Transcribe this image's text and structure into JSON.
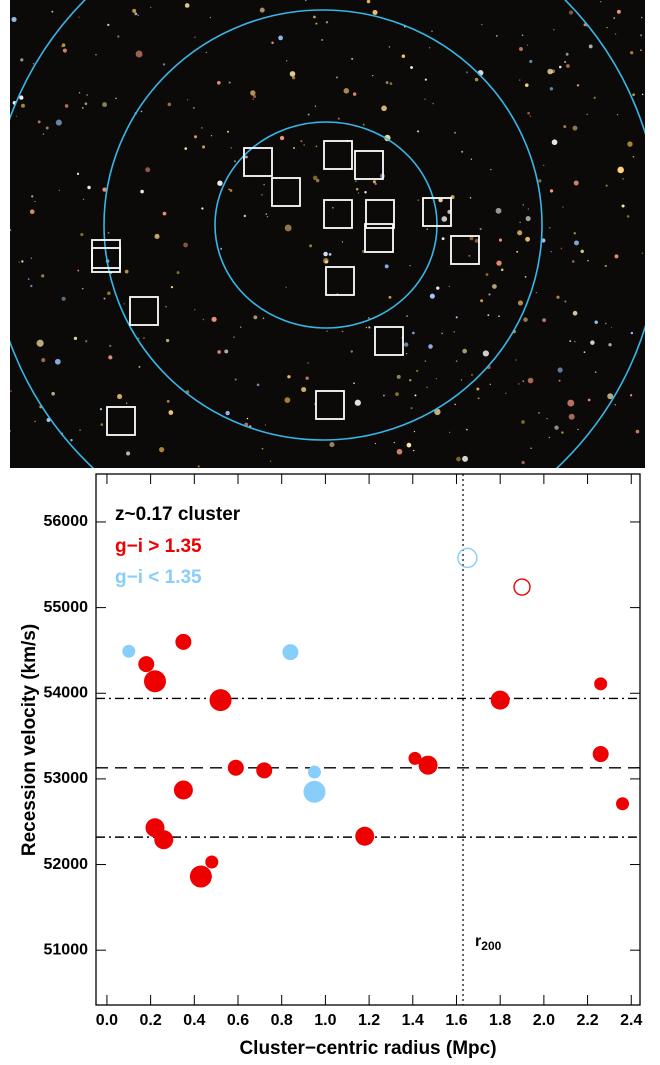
{
  "chart_data": {
    "type": "scatter",
    "legend_title": "z~0.17 cluster",
    "xlabel": "Cluster−centric radius (Mpc)",
    "ylabel": "Recession velocity (km/s)",
    "xlim": [
      -0.05,
      2.44
    ],
    "ylim": [
      50360,
      56560
    ],
    "xticks": [
      {
        "value": 0,
        "label": "0.0"
      },
      {
        "value": 0.2,
        "label": "0.2"
      },
      {
        "value": 0.4,
        "label": "0.4"
      },
      {
        "value": 0.6,
        "label": "0.6"
      },
      {
        "value": 0.8,
        "label": "0.8"
      },
      {
        "value": 1,
        "label": "1.0"
      },
      {
        "value": 1.2,
        "label": "1.2"
      },
      {
        "value": 1.4,
        "label": "1.4"
      },
      {
        "value": 1.6,
        "label": "1.6"
      },
      {
        "value": 1.8,
        "label": "1.8"
      },
      {
        "value": 2,
        "label": "2.0"
      },
      {
        "value": 2.2,
        "label": "2.2"
      },
      {
        "value": 2.4,
        "label": "2.4"
      }
    ],
    "yticks": [
      51000,
      52000,
      53000,
      54000,
      55000,
      56000
    ],
    "series": [
      {
        "name": "g−i > 1.35",
        "color": "#ee0000",
        "x": [
          0.35,
          0.22,
          0.52,
          0.18,
          0.59,
          0.72,
          0.35,
          0.22,
          0.26,
          0.48,
          0.43,
          1.18,
          1.41,
          1.47,
          1.9,
          1.8,
          2.26,
          2.26,
          2.36
        ],
        "values": [
          54600,
          54140,
          53920,
          54340,
          53130,
          53100,
          52870,
          52430,
          52290,
          52030,
          51860,
          52330,
          53240,
          53160,
          55240,
          53920,
          54110,
          53290,
          52710
        ],
        "sizes": [
          2,
          3,
          3,
          2,
          2,
          2,
          2.5,
          2.5,
          2.5,
          1.5,
          3,
          2.5,
          1.5,
          2.5,
          2,
          2.5,
          1.5,
          2,
          1.5
        ],
        "filled": [
          true,
          true,
          true,
          true,
          true,
          true,
          true,
          true,
          true,
          true,
          true,
          true,
          true,
          true,
          false,
          true,
          true,
          true,
          true
        ]
      },
      {
        "name": "g−i < 1.35",
        "color": "#87cefa",
        "x": [
          0.1,
          0.84,
          0.95,
          0.95,
          1.65
        ],
        "values": [
          54490,
          54480,
          53080,
          52850,
          55580
        ],
        "sizes": [
          1.5,
          2,
          1.5,
          3,
          2.5
        ],
        "filled": [
          true,
          true,
          true,
          true,
          false
        ]
      }
    ],
    "hlines": [
      {
        "value": 53940,
        "style": "dashdot"
      },
      {
        "value": 53130,
        "style": "dashed"
      },
      {
        "value": 52320,
        "style": "dashdot"
      }
    ],
    "vline": {
      "value": 1.63,
      "style": "dotted",
      "label": "r",
      "label_sub": "200"
    }
  }
}
